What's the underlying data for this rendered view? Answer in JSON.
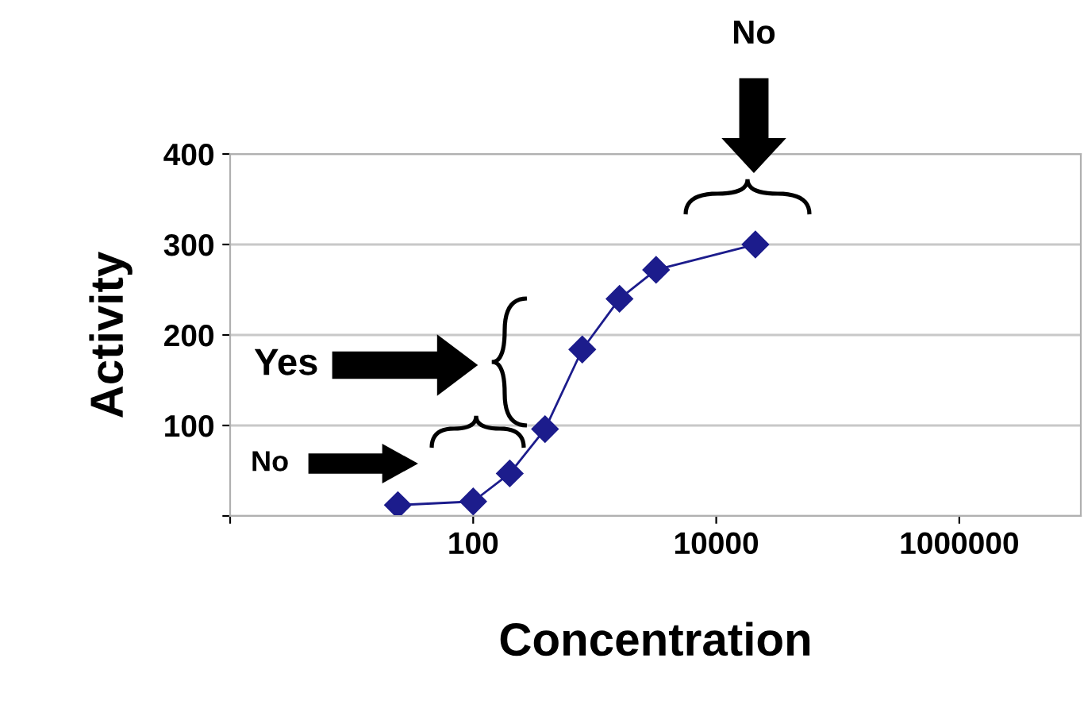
{
  "chart_data": {
    "type": "line",
    "xlabel": "Concentration",
    "ylabel": "Activity",
    "x": [
      24,
      100,
      200,
      390,
      790,
      1600,
      3200,
      21000
    ],
    "series": [
      {
        "color": "#1c1c8c",
        "values": [
          12,
          16,
          47,
          96,
          184,
          240,
          272,
          300
        ]
      }
    ],
    "log": "x",
    "xlim": [
      1,
      10000000
    ],
    "xticks": [
      {
        "value": 1,
        "label": null
      },
      100,
      10000,
      1000000
    ],
    "ylim": [
      0,
      400
    ],
    "yticks": [
      {
        "value": 0,
        "label": null
      },
      100,
      200,
      300,
      400
    ],
    "grid": "y",
    "marker": "diamond",
    "line_style": "solid",
    "annotations": [
      "No",
      "Yes",
      "No"
    ]
  }
}
